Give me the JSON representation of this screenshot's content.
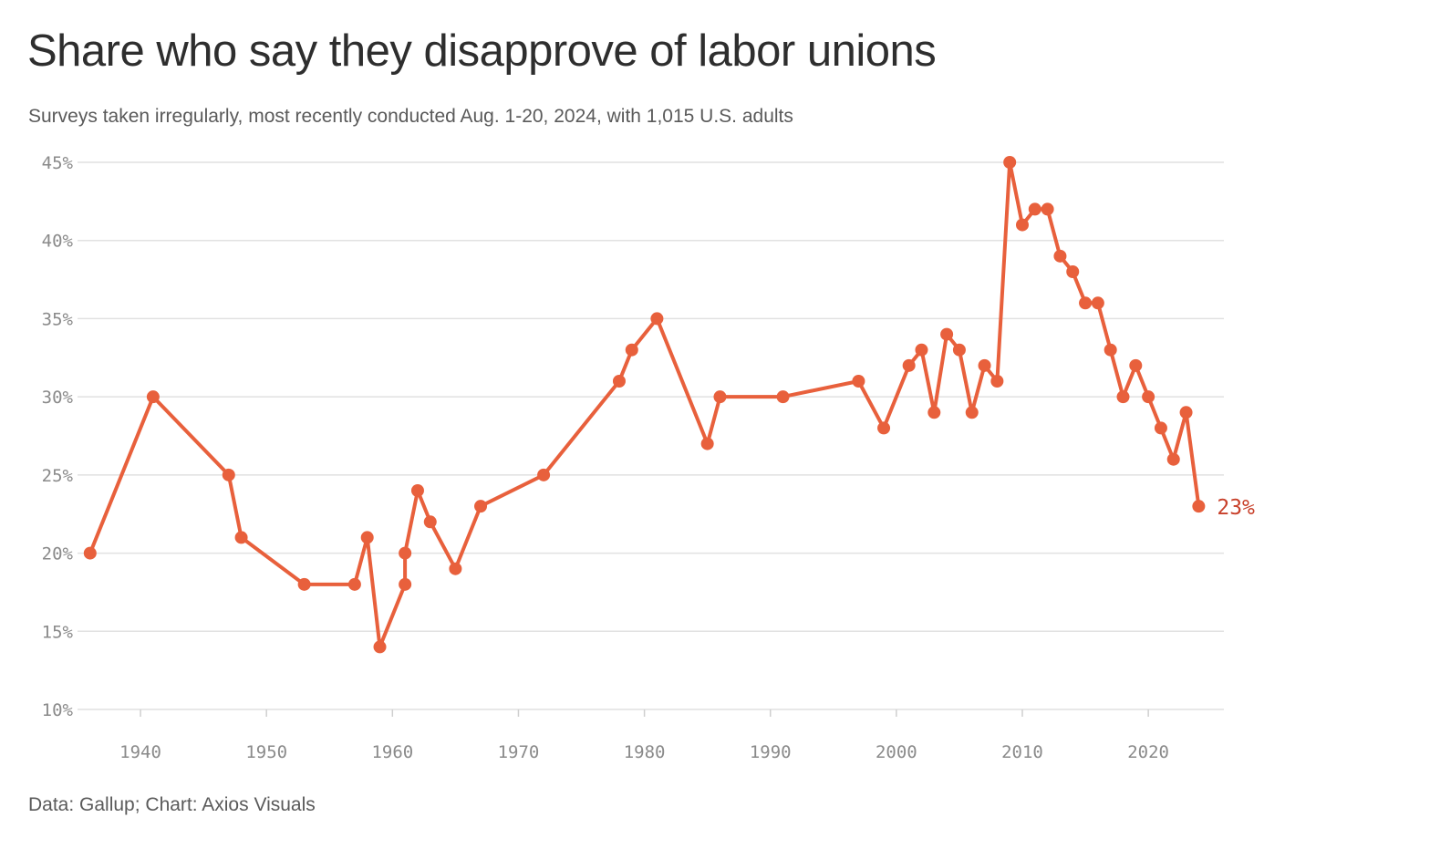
{
  "title": "Share who say they disapprove of labor unions",
  "subtitle": "Surveys taken irregularly, most recently conducted Aug. 1-20, 2024, with 1,015 U.S. adults",
  "source": "Data: Gallup; Chart: Axios Visuals",
  "colors": {
    "line": "#e8603c",
    "end_label": "#c8402a",
    "grid": "#e1e1e1",
    "tick": "#8a8a8a"
  },
  "chart_data": {
    "type": "line",
    "title": "Share who say they disapprove of labor unions",
    "xlabel": "",
    "ylabel": "",
    "xlim": [
      1935,
      2026
    ],
    "ylim": [
      10,
      45
    ],
    "x_ticks": [
      1940,
      1950,
      1960,
      1970,
      1980,
      1990,
      2000,
      2010,
      2020
    ],
    "y_ticks": [
      10,
      15,
      20,
      25,
      30,
      35,
      40,
      45
    ],
    "y_tick_labels": [
      "10%",
      "15%",
      "20%",
      "25%",
      "30%",
      "35%",
      "40%",
      "45%"
    ],
    "grid": "horizontal",
    "end_label": "23%",
    "series": [
      {
        "x": [
          1936,
          1941,
          1947,
          1948,
          1953,
          1957,
          1958,
          1959,
          1961,
          1961,
          1962,
          1963,
          1965,
          1967,
          1972,
          1978,
          1979,
          1981,
          1985,
          1986,
          1991,
          1997,
          1999,
          2001,
          2002,
          2003,
          2004,
          2005,
          2006,
          2007,
          2008,
          2009,
          2010,
          2011,
          2012,
          2013,
          2014,
          2015,
          2016,
          2017,
          2018,
          2019,
          2020,
          2021,
          2022,
          2023,
          2024
        ],
        "values": [
          20,
          30,
          25,
          21,
          18,
          18,
          21,
          14,
          18,
          20,
          24,
          22,
          19,
          23,
          25,
          31,
          33,
          35,
          27,
          30,
          30,
          31,
          28,
          32,
          33,
          29,
          34,
          33,
          29,
          32,
          31,
          45,
          41,
          42,
          42,
          39,
          38,
          36,
          36,
          33,
          30,
          32,
          30,
          28,
          26,
          29,
          23
        ]
      }
    ]
  }
}
